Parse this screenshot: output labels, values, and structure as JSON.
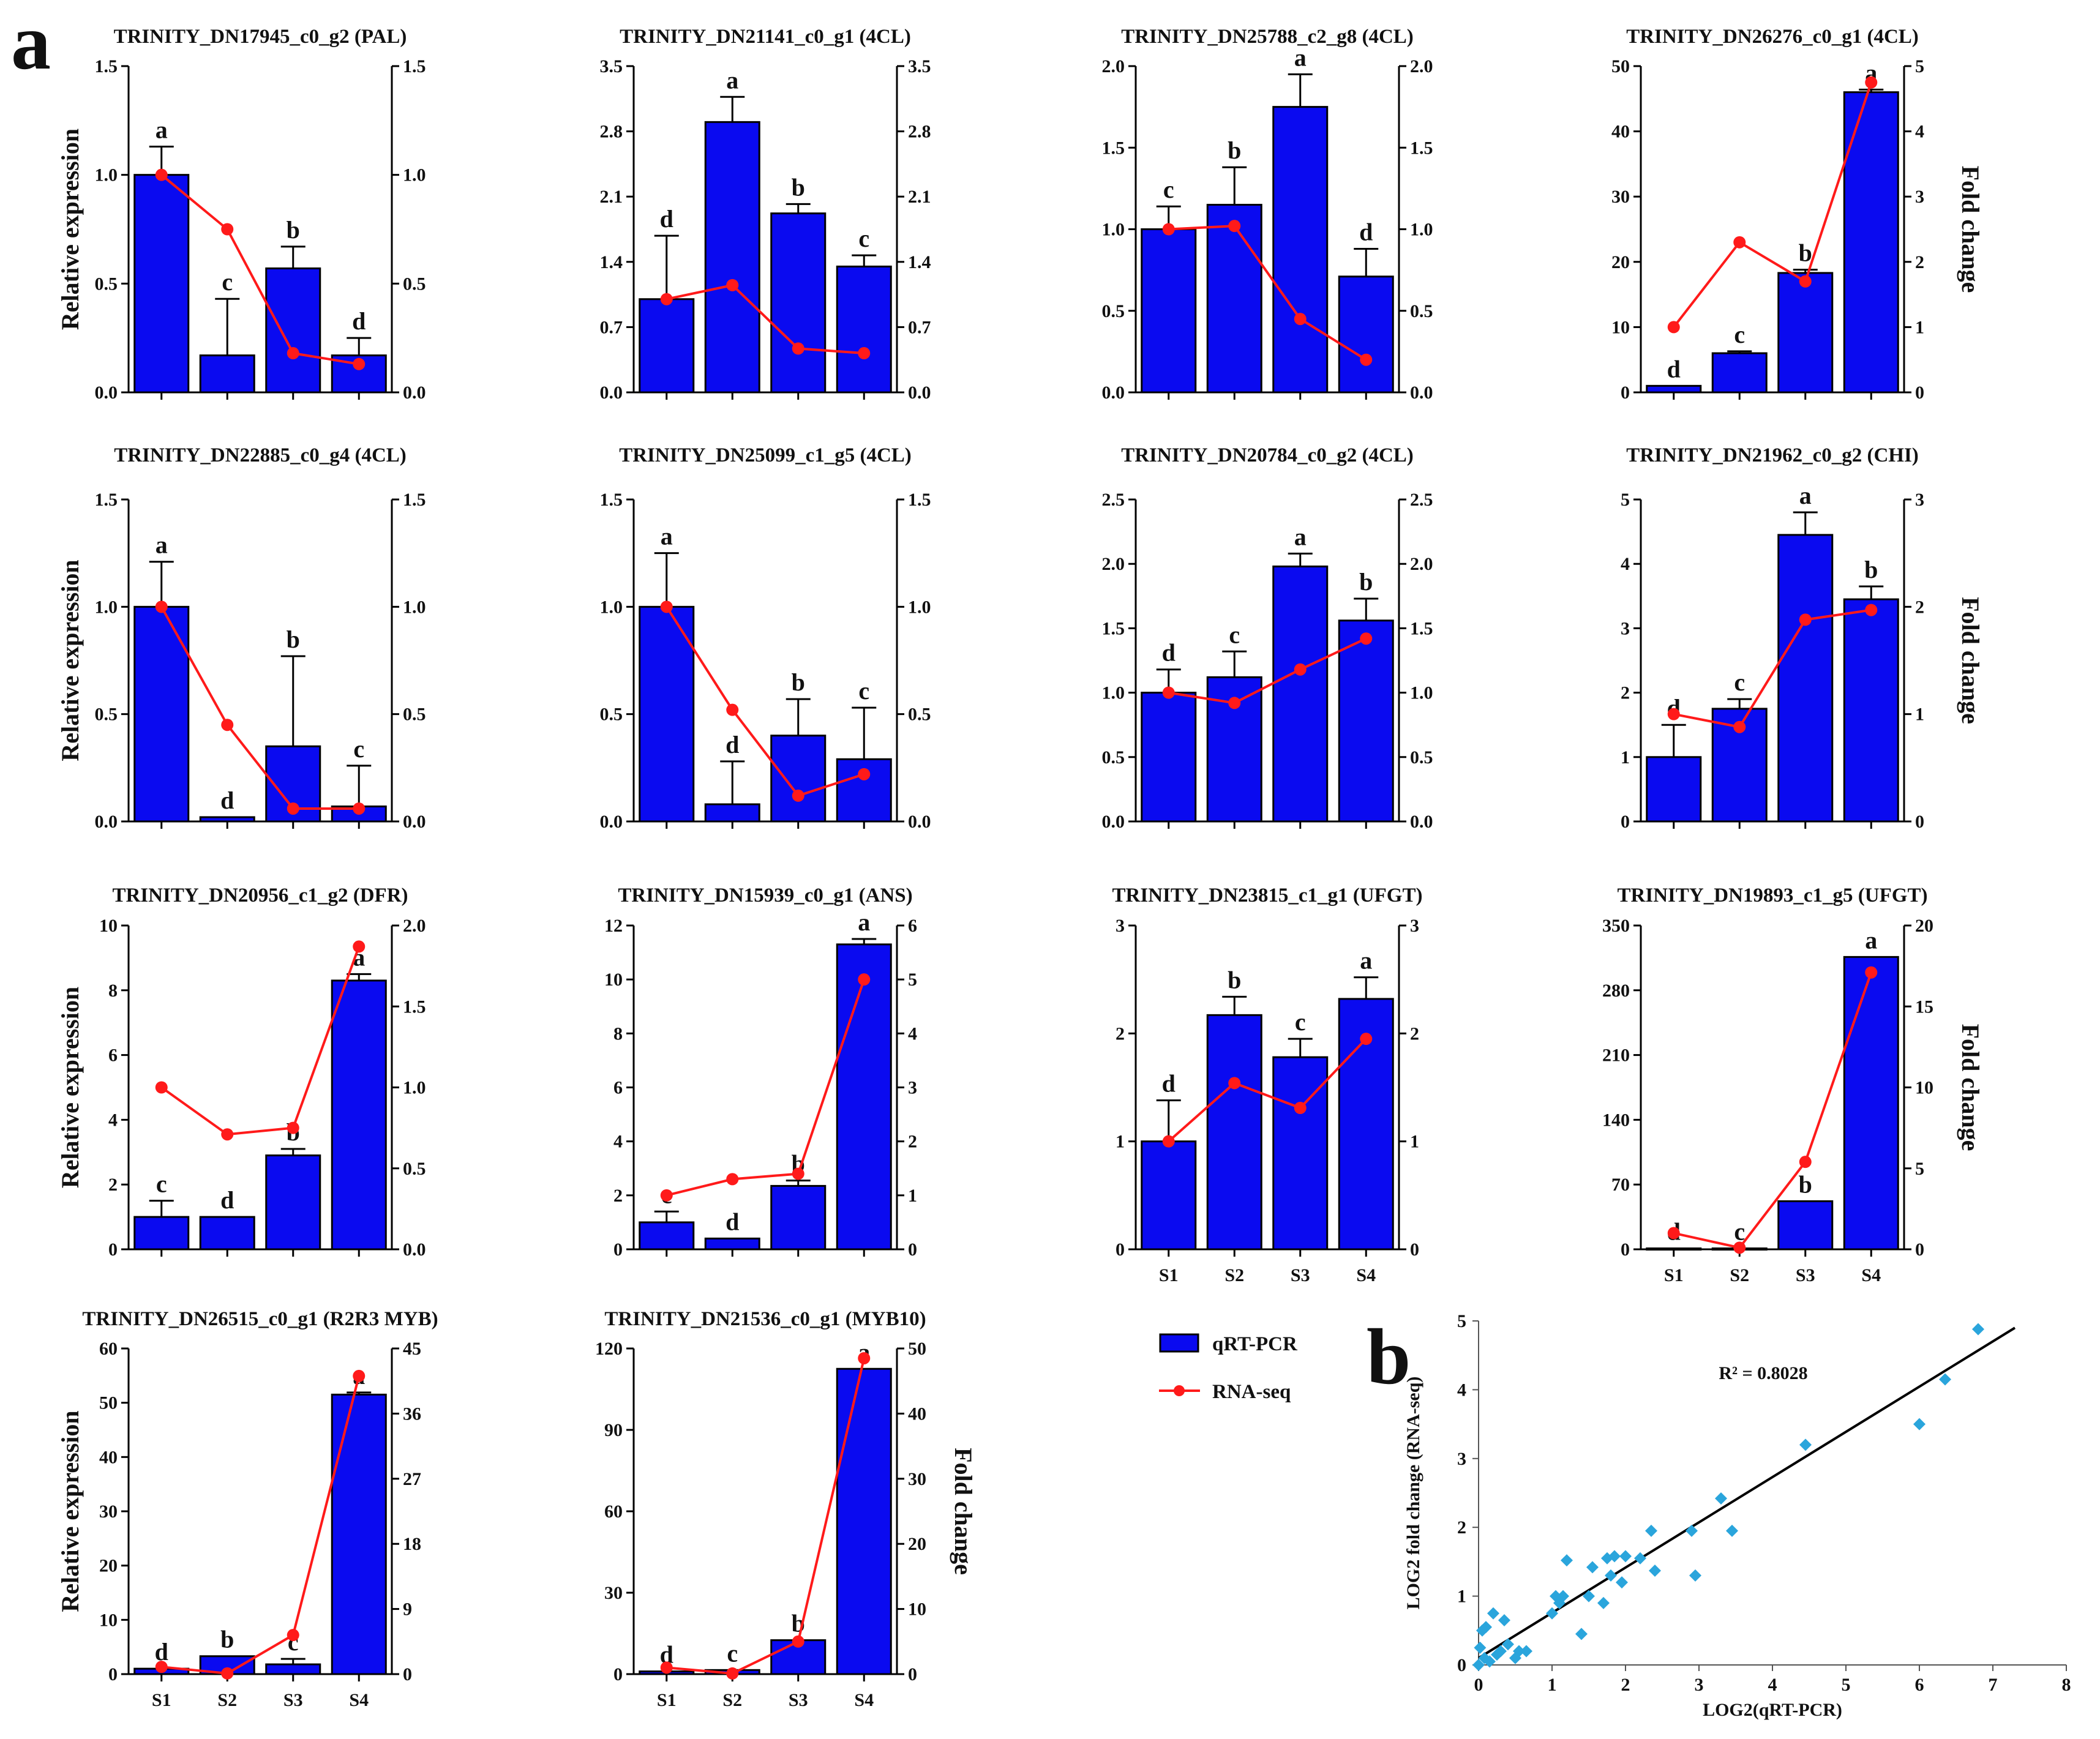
{
  "figure": {
    "panel_a_label": "a",
    "panel_b_label": "b",
    "legend": {
      "bar_label": "qRT-PCR",
      "line_label": "RNA-seq"
    },
    "colors": {
      "bar": "#0a0af0",
      "line": "#ff1a1a",
      "scatter": "#2aa5dc",
      "fit": "#000000"
    },
    "left_axis_label": "Relative expression",
    "right_axis_label": "Fold change"
  },
  "chart_data": [
    {
      "type": "bar",
      "title": "TRINITY_DN17945_c0_g2 (PAL)",
      "categories": [
        "S1",
        "S2",
        "S3",
        "S4"
      ],
      "values": [
        1.0,
        0.17,
        0.57,
        0.17
      ],
      "errors": [
        0.13,
        0.26,
        0.1,
        0.08
      ],
      "letters": [
        "a",
        "c",
        "b",
        "d"
      ],
      "ylim": [
        0,
        1.5
      ],
      "yticks": [
        "0.0",
        "0.5",
        "1.0",
        "1.5"
      ],
      "line_values": [
        1.0,
        0.75,
        0.18,
        0.13
      ],
      "y2lim": [
        0,
        1.5
      ],
      "y2ticks": [
        "0.0",
        "0.5",
        "1.0",
        "1.5"
      ]
    },
    {
      "type": "bar",
      "title": "TRINITY_DN21141_c0_g1 (4CL)",
      "categories": [
        "S1",
        "S2",
        "S3",
        "S4"
      ],
      "values": [
        1.0,
        2.9,
        1.92,
        1.35
      ],
      "errors": [
        0.68,
        0.27,
        0.1,
        0.12
      ],
      "letters": [
        "d",
        "a",
        "b",
        "c"
      ],
      "ylim": [
        0,
        3.5
      ],
      "yticks": [
        "0.0",
        "0.7",
        "1.4",
        "2.1",
        "2.8",
        "3.5"
      ],
      "line_values": [
        1.0,
        1.15,
        0.47,
        0.42
      ],
      "y2lim": [
        0,
        3.5
      ],
      "y2ticks": [
        "0.0",
        "0.7",
        "1.4",
        "2.1",
        "2.8",
        "3.5"
      ]
    },
    {
      "type": "bar",
      "title": "TRINITY_DN25788_c2_g8 (4CL)",
      "categories": [
        "S1",
        "S2",
        "S3",
        "S4"
      ],
      "values": [
        1.0,
        1.15,
        1.75,
        0.71
      ],
      "errors": [
        0.14,
        0.23,
        0.2,
        0.17
      ],
      "letters": [
        "c",
        "b",
        "a",
        "d"
      ],
      "ylim": [
        0,
        2.0
      ],
      "yticks": [
        "0.0",
        "0.5",
        "1.0",
        "1.5",
        "2.0"
      ],
      "line_values": [
        1.0,
        1.02,
        0.45,
        0.2
      ],
      "y2lim": [
        0,
        2.0
      ],
      "y2ticks": [
        "0.0",
        "0.5",
        "1.0",
        "1.5",
        "2.0"
      ]
    },
    {
      "type": "bar",
      "title": "TRINITY_DN26276_c0_g1 (4CL)",
      "categories": [
        "S1",
        "S2",
        "S3",
        "S4"
      ],
      "values": [
        1.0,
        6.0,
        18.3,
        46.0
      ],
      "errors": [
        0,
        0.3,
        0.5,
        0.4
      ],
      "letters": [
        "d",
        "c",
        "b",
        "a"
      ],
      "ylim": [
        0,
        50
      ],
      "yticks": [
        "0",
        "10",
        "20",
        "30",
        "40",
        "50"
      ],
      "line_values": [
        1.0,
        2.3,
        1.7,
        4.75
      ],
      "y2lim": [
        0,
        5
      ],
      "y2ticks": [
        "0",
        "1",
        "2",
        "3",
        "4",
        "5"
      ]
    },
    {
      "type": "bar",
      "title": "TRINITY_DN22885_c0_g4 (4CL)",
      "categories": [
        "S1",
        "S2",
        "S3",
        "S4"
      ],
      "values": [
        1.0,
        0.02,
        0.35,
        0.07
      ],
      "errors": [
        0.21,
        0,
        0.42,
        0.19
      ],
      "letters": [
        "a",
        "d",
        "b",
        "c"
      ],
      "ylim": [
        0,
        1.5
      ],
      "yticks": [
        "0.0",
        "0.5",
        "1.0",
        "1.5"
      ],
      "line_values": [
        1.0,
        0.45,
        0.06,
        0.06
      ],
      "y2lim": [
        0,
        1.5
      ],
      "y2ticks": [
        "0.0",
        "0.5",
        "1.0",
        "1.5"
      ]
    },
    {
      "type": "bar",
      "title": "TRINITY_DN25099_c1_g5 (4CL)",
      "categories": [
        "S1",
        "S2",
        "S3",
        "S4"
      ],
      "values": [
        1.0,
        0.08,
        0.4,
        0.29
      ],
      "errors": [
        0.25,
        0.2,
        0.17,
        0.24
      ],
      "letters": [
        "a",
        "d",
        "b",
        "c"
      ],
      "ylim": [
        0,
        1.5
      ],
      "yticks": [
        "0.0",
        "0.5",
        "1.0",
        "1.5"
      ],
      "line_values": [
        1.0,
        0.52,
        0.12,
        0.22
      ],
      "y2lim": [
        0,
        1.5
      ],
      "y2ticks": [
        "0.0",
        "0.5",
        "1.0",
        "1.5"
      ]
    },
    {
      "type": "bar",
      "title": "TRINITY_DN20784_c0_g2 (4CL)",
      "categories": [
        "S1",
        "S2",
        "S3",
        "S4"
      ],
      "values": [
        1.0,
        1.12,
        1.98,
        1.56
      ],
      "errors": [
        0.18,
        0.2,
        0.1,
        0.17
      ],
      "letters": [
        "d",
        "c",
        "a",
        "b"
      ],
      "ylim": [
        0,
        2.5
      ],
      "yticks": [
        "0.0",
        "0.5",
        "1.0",
        "1.5",
        "2.0",
        "2.5"
      ],
      "line_values": [
        1.0,
        0.92,
        1.18,
        1.42
      ],
      "y2lim": [
        0,
        2.5
      ],
      "y2ticks": [
        "0.0",
        "0.5",
        "1.0",
        "1.5",
        "2.0",
        "2.5"
      ]
    },
    {
      "type": "bar",
      "title": "TRINITY_DN21962_c0_g2 (CHI)",
      "categories": [
        "S1",
        "S2",
        "S3",
        "S4"
      ],
      "values": [
        1.0,
        1.75,
        4.45,
        3.45
      ],
      "errors": [
        0.5,
        0.15,
        0.35,
        0.2
      ],
      "letters": [
        "d",
        "c",
        "a",
        "b"
      ],
      "ylim": [
        0,
        5
      ],
      "yticks": [
        "0",
        "1",
        "2",
        "3",
        "4",
        "5"
      ],
      "line_values": [
        1.0,
        0.88,
        1.88,
        1.97
      ],
      "y2lim": [
        0,
        3
      ],
      "y2ticks": [
        "0",
        "1",
        "2",
        "3"
      ]
    },
    {
      "type": "bar",
      "title": "TRINITY_DN20956_c1_g2 (DFR)",
      "categories": [
        "S1",
        "S2",
        "S3",
        "S4"
      ],
      "values": [
        1.0,
        1.0,
        2.9,
        8.3
      ],
      "errors": [
        0.5,
        0,
        0.2,
        0.2
      ],
      "letters": [
        "c",
        "d",
        "b",
        "a"
      ],
      "ylim": [
        0,
        10
      ],
      "yticks": [
        "0",
        "2",
        "4",
        "6",
        "8",
        "10"
      ],
      "line_values": [
        1.0,
        0.71,
        0.75,
        1.87
      ],
      "y2lim": [
        0,
        2.0
      ],
      "y2ticks": [
        "0.0",
        "0.5",
        "1.0",
        "1.5",
        "2.0"
      ]
    },
    {
      "type": "bar",
      "title": "TRINITY_DN15939_c0_g1 (ANS)",
      "categories": [
        "S1",
        "S2",
        "S3",
        "S4"
      ],
      "values": [
        1.0,
        0.4,
        2.35,
        11.3
      ],
      "errors": [
        0.4,
        0,
        0.2,
        0.2
      ],
      "letters": [
        "c",
        "d",
        "b",
        "a"
      ],
      "ylim": [
        0,
        12
      ],
      "yticks": [
        "0",
        "2",
        "4",
        "6",
        "8",
        "10",
        "12"
      ],
      "line_values": [
        1.0,
        1.3,
        1.4,
        5.0
      ],
      "y2lim": [
        0,
        6
      ],
      "y2ticks": [
        "0",
        "1",
        "2",
        "3",
        "4",
        "5",
        "6"
      ]
    },
    {
      "type": "bar",
      "title": "TRINITY_DN23815_c1_g1 (UFGT)",
      "categories": [
        "S1",
        "S2",
        "S3",
        "S4"
      ],
      "values": [
        1.0,
        2.17,
        1.78,
        2.32
      ],
      "errors": [
        0.38,
        0.17,
        0.17,
        0.2
      ],
      "letters": [
        "d",
        "b",
        "c",
        "a"
      ],
      "ylim": [
        0,
        3
      ],
      "yticks": [
        "0",
        "1",
        "2",
        "3"
      ],
      "line_values": [
        1.0,
        1.54,
        1.31,
        1.95
      ],
      "y2lim": [
        0,
        3
      ],
      "y2ticks": [
        "0",
        "1",
        "2",
        "3"
      ]
    },
    {
      "type": "bar",
      "title": "TRINITY_DN19893_c1_g5 (UFGT)",
      "categories": [
        "S1",
        "S2",
        "S3",
        "S4"
      ],
      "values": [
        1.0,
        1.0,
        52.0,
        316.0
      ],
      "errors": [
        0,
        0,
        0,
        0
      ],
      "letters": [
        "d",
        "c",
        "b",
        "a"
      ],
      "ylim": [
        0,
        350
      ],
      "yticks": [
        "0",
        "70",
        "140",
        "210",
        "280",
        "350"
      ],
      "line_values": [
        1.0,
        0.1,
        5.4,
        17.1
      ],
      "y2lim": [
        0,
        20
      ],
      "y2ticks": [
        "0",
        "5",
        "10",
        "15",
        "20"
      ]
    },
    {
      "type": "bar",
      "title": "TRINITY_DN26515_c0_g1 (R2R3 MYB)",
      "categories": [
        "S1",
        "S2",
        "S3",
        "S4"
      ],
      "values": [
        1.0,
        3.3,
        1.8,
        51.5
      ],
      "errors": [
        0,
        0,
        1.0,
        0.4
      ],
      "letters": [
        "d",
        "b",
        "c",
        "a"
      ],
      "ylim": [
        0,
        60
      ],
      "yticks": [
        "0",
        "10",
        "20",
        "30",
        "40",
        "50",
        "60"
      ],
      "line_values": [
        1.0,
        0.1,
        5.4,
        41.2
      ],
      "y2lim": [
        0,
        45
      ],
      "y2ticks": [
        "0",
        "9",
        "18",
        "27",
        "36",
        "45"
      ]
    },
    {
      "type": "bar",
      "title": "TRINITY_DN21536_c0_g1 (MYB10)",
      "categories": [
        "S1",
        "S2",
        "S3",
        "S4"
      ],
      "values": [
        1.0,
        1.5,
        12.5,
        112.5
      ],
      "errors": [
        0,
        0,
        0,
        0
      ],
      "letters": [
        "d",
        "c",
        "b",
        "a"
      ],
      "ylim": [
        0,
        120
      ],
      "yticks": [
        "0",
        "30",
        "60",
        "90",
        "120"
      ],
      "line_values": [
        1.0,
        0.1,
        5.0,
        48.5
      ],
      "y2lim": [
        0,
        50
      ],
      "y2ticks": [
        "0",
        "10",
        "20",
        "30",
        "40",
        "50"
      ]
    },
    {
      "type": "scatter",
      "title": "",
      "xlabel": "LOG2(qRT-PCR)",
      "ylabel": "LOG2 fold change (RNA-seq)",
      "annotation": "R² = 0.8028",
      "xlim": [
        0,
        8
      ],
      "ylim": [
        0,
        5
      ],
      "xticks": [
        "0",
        "1",
        "2",
        "3",
        "4",
        "5",
        "6",
        "7",
        "8"
      ],
      "yticks": [
        "0",
        "1",
        "2",
        "3",
        "4",
        "5"
      ],
      "fit_line": [
        [
          0,
          0.1
        ],
        [
          7.3,
          4.9
        ]
      ],
      "x": [
        0.0,
        0.02,
        0.05,
        0.08,
        0.1,
        0.15,
        0.2,
        0.25,
        0.3,
        0.35,
        0.4,
        0.5,
        0.55,
        0.65,
        1.0,
        1.05,
        1.1,
        1.15,
        1.2,
        1.4,
        1.5,
        1.55,
        1.7,
        1.75,
        1.8,
        1.85,
        1.95,
        2.0,
        2.2,
        2.35,
        2.4,
        2.9,
        2.95,
        3.3,
        3.45,
        4.45,
        6.0,
        6.35,
        6.8
      ],
      "y": [
        0.0,
        0.25,
        0.5,
        0.1,
        0.55,
        0.05,
        0.75,
        0.15,
        0.2,
        0.65,
        0.3,
        0.1,
        0.2,
        0.2,
        0.75,
        1.0,
        0.9,
        1.0,
        1.52,
        0.45,
        1.0,
        1.42,
        0.9,
        1.55,
        1.3,
        1.58,
        1.2,
        1.58,
        1.55,
        1.95,
        1.37,
        1.95,
        1.3,
        2.42,
        1.95,
        3.2,
        3.5,
        4.15,
        4.88
      ]
    }
  ]
}
